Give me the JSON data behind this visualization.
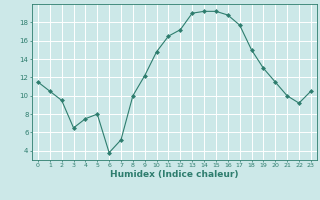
{
  "x": [
    0,
    1,
    2,
    3,
    4,
    5,
    6,
    7,
    8,
    9,
    10,
    11,
    12,
    13,
    14,
    15,
    16,
    17,
    18,
    19,
    20,
    21,
    22,
    23
  ],
  "y": [
    11.5,
    10.5,
    9.5,
    6.5,
    7.5,
    8.0,
    3.8,
    5.2,
    10.0,
    12.2,
    14.8,
    16.5,
    17.2,
    19.0,
    19.2,
    19.2,
    18.8,
    17.7,
    15.0,
    13.0,
    11.5,
    10.0,
    9.2,
    10.5
  ],
  "line_color": "#2e7d6e",
  "marker": "D",
  "marker_size": 2.0,
  "line_width": 0.8,
  "xlabel": "Humidex (Indice chaleur)",
  "xlabel_fontsize": 6.5,
  "bg_color": "#cce8e8",
  "grid_color": "#ffffff",
  "axis_color": "#2e7d6e",
  "tick_color": "#2e7d6e",
  "xlim": [
    -0.5,
    23.5
  ],
  "ylim": [
    3,
    20
  ],
  "yticks": [
    4,
    6,
    8,
    10,
    12,
    14,
    16,
    18
  ],
  "xticks": [
    0,
    1,
    2,
    3,
    4,
    5,
    6,
    7,
    8,
    9,
    10,
    11,
    12,
    13,
    14,
    15,
    16,
    17,
    18,
    19,
    20,
    21,
    22,
    23
  ]
}
